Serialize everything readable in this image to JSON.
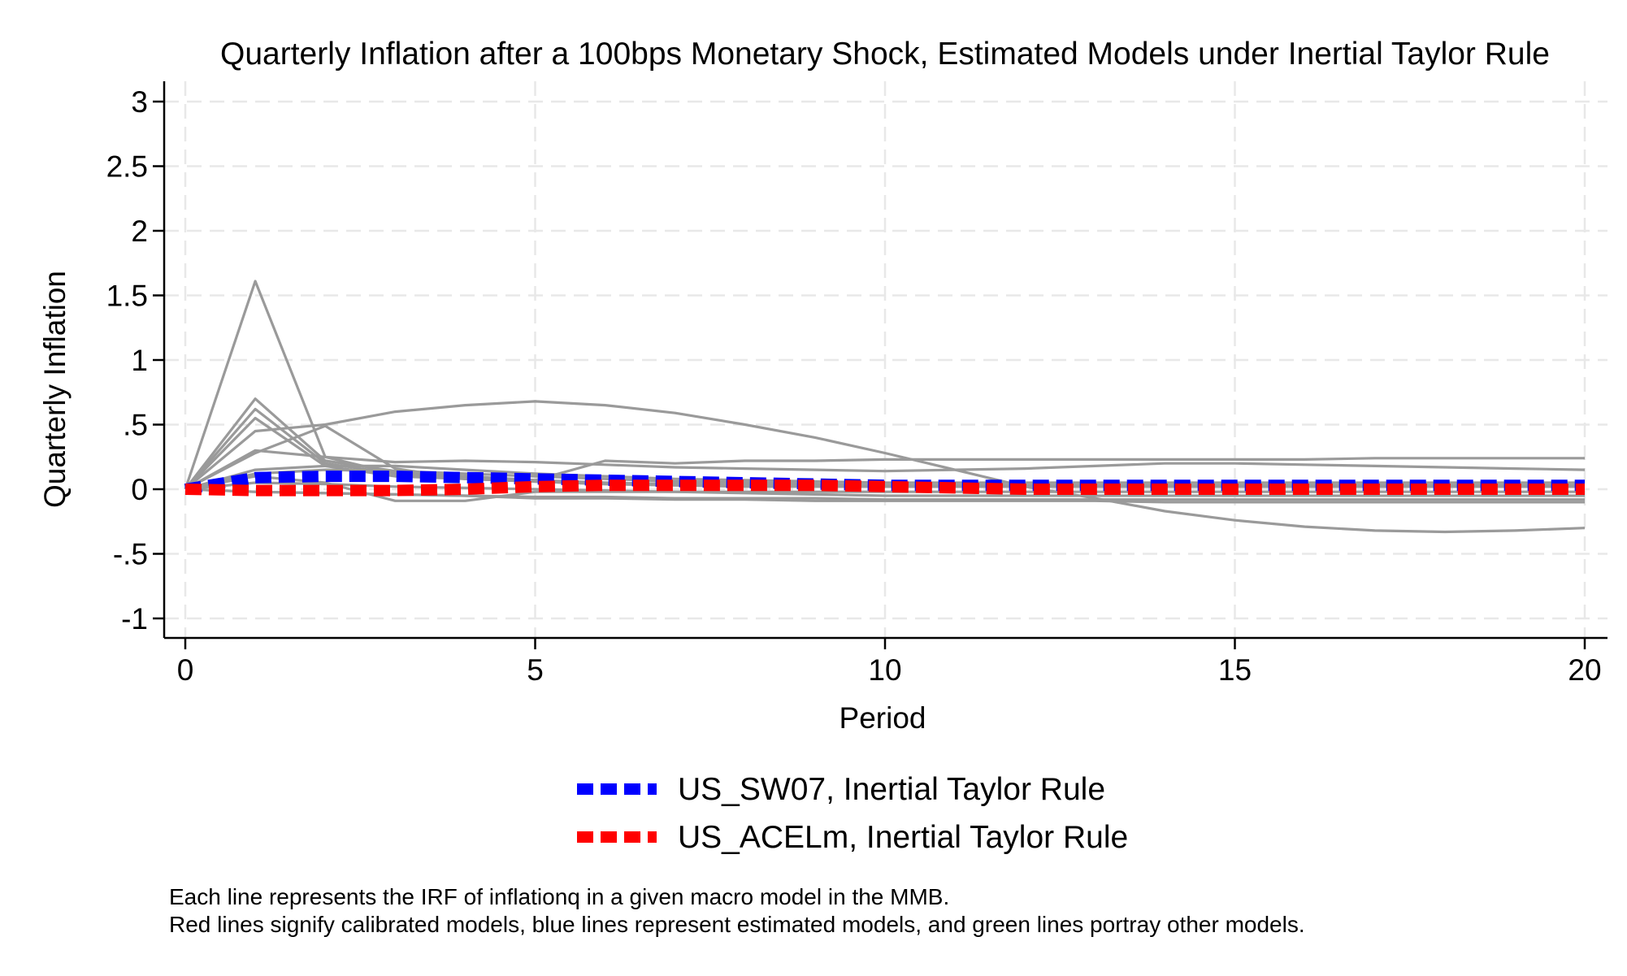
{
  "chart_data": {
    "type": "line",
    "title": "Quarterly Inflation after a 100bps Monetary Shock, Estimated Models under Inertial Taylor Rule",
    "xlabel": "Period",
    "ylabel": "Quarterly Inflation",
    "xlim": [
      0,
      20
    ],
    "ylim": [
      -1.1,
      3.1
    ],
    "xticks": [
      0,
      5,
      10,
      15,
      20
    ],
    "xtick_labels": [
      "0",
      "5",
      "10",
      "15",
      "20"
    ],
    "yticks": [
      -1,
      -0.5,
      0,
      0.5,
      1,
      1.5,
      2,
      2.5,
      3
    ],
    "ytick_labels": [
      "-1",
      "-.5",
      "0",
      ".5",
      "1",
      "1.5",
      "2",
      "2.5",
      "3"
    ],
    "grid": true,
    "legend_position": "bottom",
    "x": [
      0,
      1,
      2,
      3,
      4,
      5,
      6,
      7,
      8,
      9,
      10,
      11,
      12,
      13,
      14,
      15,
      16,
      17,
      18,
      19,
      20
    ],
    "background_series": [
      {
        "values": [
          0,
          1.61,
          0.25,
          0.12,
          0.08,
          0.06,
          0.04,
          0.03,
          0.02,
          0.02,
          0.02,
          0.02,
          0.02,
          0.02,
          0.02,
          0.02,
          0.02,
          0.02,
          0.02,
          0.02,
          0.02
        ]
      },
      {
        "values": [
          0,
          0.7,
          0.22,
          0.14,
          0.1,
          0.07,
          0.05,
          0.04,
          0.03,
          0.03,
          0.02,
          0.02,
          0.02,
          0.02,
          0.02,
          0.02,
          0.02,
          0.02,
          0.02,
          0.02,
          0.02
        ]
      },
      {
        "values": [
          0,
          0.62,
          0.2,
          0.12,
          0.09,
          0.06,
          0.05,
          0.04,
          0.03,
          0.03,
          0.02,
          0.02,
          0.02,
          0.02,
          0.02,
          0.02,
          0.02,
          0.02,
          0.02,
          0.02,
          0.02
        ]
      },
      {
        "values": [
          0,
          0.55,
          0.18,
          0.1,
          0.08,
          0.06,
          0.04,
          0.03,
          0.03,
          0.02,
          0.02,
          0.02,
          0.02,
          0.02,
          0.02,
          0.02,
          0.02,
          0.02,
          0.02,
          0.02,
          0.02
        ]
      },
      {
        "values": [
          0,
          0.45,
          0.5,
          0.6,
          0.65,
          0.68,
          0.65,
          0.59,
          0.5,
          0.4,
          0.28,
          0.15,
          0.02,
          -0.07,
          -0.17,
          -0.24,
          -0.29,
          -0.32,
          -0.33,
          -0.32,
          -0.3
        ]
      },
      {
        "values": [
          0,
          0.3,
          0.25,
          0.21,
          0.22,
          0.21,
          0.19,
          0.17,
          0.16,
          0.15,
          0.14,
          0.15,
          0.16,
          0.18,
          0.2,
          0.2,
          0.19,
          0.18,
          0.17,
          0.16,
          0.15
        ]
      },
      {
        "values": [
          0,
          0.28,
          0.49,
          0.16,
          0.08,
          0.07,
          0.22,
          0.2,
          0.22,
          0.22,
          0.23,
          0.23,
          0.23,
          0.23,
          0.23,
          0.23,
          0.23,
          0.24,
          0.24,
          0.24,
          0.24
        ]
      },
      {
        "values": [
          0,
          0.15,
          0.18,
          0.18,
          0.15,
          0.12,
          0.1,
          0.08,
          0.07,
          0.06,
          0.05,
          0.05,
          0.05,
          0.05,
          0.05,
          0.05,
          0.05,
          0.05,
          0.05,
          0.05,
          0.05
        ]
      },
      {
        "values": [
          0,
          0.12,
          0.15,
          0.14,
          0.12,
          0.1,
          0.08,
          0.06,
          0.05,
          0.04,
          0.03,
          0.03,
          0.03,
          0.03,
          0.03,
          0.03,
          0.03,
          0.03,
          0.03,
          0.03,
          0.03
        ]
      },
      {
        "values": [
          0,
          0.1,
          0.05,
          -0.09,
          -0.09,
          -0.02,
          -0.02,
          -0.02,
          -0.02,
          -0.02,
          -0.02,
          -0.02,
          -0.02,
          -0.02,
          -0.02,
          -0.02,
          -0.02,
          -0.02,
          -0.02,
          -0.02,
          -0.02
        ]
      },
      {
        "values": [
          0,
          -0.02,
          -0.03,
          -0.04,
          -0.05,
          -0.06,
          -0.06,
          -0.07,
          -0.07,
          -0.07,
          -0.08,
          -0.08,
          -0.08,
          -0.08,
          -0.08,
          -0.08,
          -0.08,
          -0.08,
          -0.08,
          -0.08,
          -0.08
        ]
      },
      {
        "values": [
          0,
          -0.02,
          -0.03,
          -0.04,
          -0.05,
          -0.07,
          -0.07,
          -0.08,
          -0.08,
          -0.09,
          -0.09,
          -0.09,
          -0.09,
          -0.09,
          -0.1,
          -0.1,
          -0.1,
          -0.1,
          -0.1,
          -0.1,
          -0.1
        ]
      },
      {
        "values": [
          0,
          0.05,
          0.04,
          0.02,
          0.01,
          0.0,
          -0.01,
          -0.02,
          -0.03,
          -0.04,
          -0.05,
          -0.05,
          -0.05,
          -0.05,
          -0.05,
          -0.05,
          -0.05,
          -0.05,
          -0.05,
          -0.05,
          -0.05
        ]
      }
    ],
    "series": [
      {
        "name": "US_SW07, Inertial Taylor Rule",
        "color": "#0000ff",
        "values": [
          0,
          0.09,
          0.1,
          0.1,
          0.09,
          0.08,
          0.07,
          0.06,
          0.05,
          0.04,
          0.03,
          0.03,
          0.03,
          0.03,
          0.03,
          0.03,
          0.03,
          0.03,
          0.03,
          0.03,
          0.03
        ]
      },
      {
        "name": "US_ACELm, Inertial Taylor Rule",
        "color": "#ff0000",
        "values": [
          0,
          -0.01,
          -0.01,
          -0.01,
          0.0,
          0.02,
          0.03,
          0.03,
          0.03,
          0.03,
          0.02,
          0.01,
          0.0,
          0.0,
          0.0,
          0.0,
          0.0,
          0.0,
          0.0,
          0.0,
          0.0
        ]
      }
    ],
    "background_color": "#9a9a9a",
    "notes": [
      "Each line represents the IRF of inflationq in a given macro model in the MMB.",
      "Red lines signify calibrated models, blue lines represent estimated models, and green lines portray other models."
    ]
  }
}
